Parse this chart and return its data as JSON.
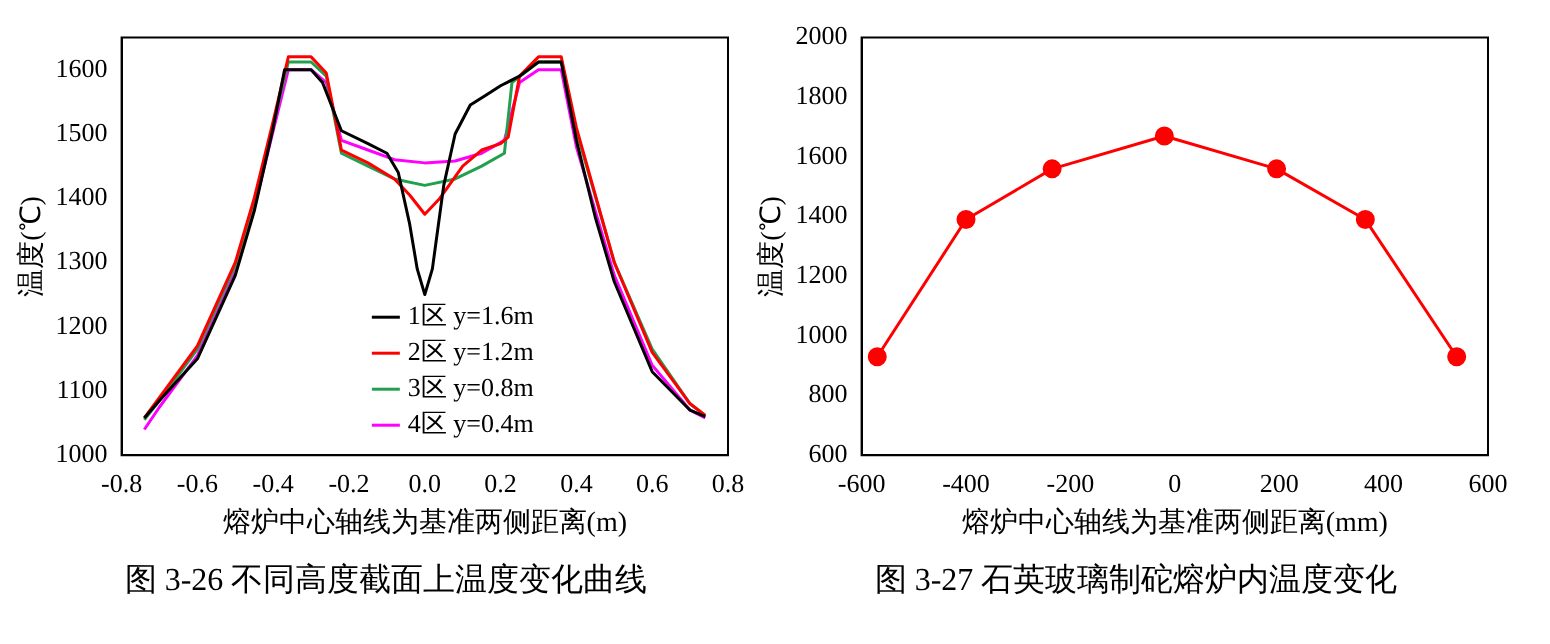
{
  "chart_data": [
    {
      "type": "line",
      "xlabel": "熔炉中心轴线为基准两侧距离(m)",
      "ylabel": "温度(℃)",
      "annotations": [
        "图 3-26  不同高度截面上温度变化曲线"
      ],
      "xlim": [
        -0.8,
        0.8
      ],
      "xticks": [
        -0.8,
        -0.6,
        -0.4,
        -0.2,
        {
          "value": 0,
          "label": "0.0"
        },
        0.2,
        0.4,
        0.6,
        0.8
      ],
      "ylim": [
        1000,
        1650
      ],
      "yticks": [
        1000,
        1100,
        1200,
        1300,
        1400,
        1500,
        1600
      ],
      "grid": false,
      "legend": "bottom",
      "marker": "none",
      "line_style": "solid",
      "series": [
        {
          "name": "1区 y=1.6m",
          "color": "#000000",
          "x": [
            -0.74,
            -0.7,
            -0.6,
            -0.5,
            -0.45,
            -0.4,
            -0.37,
            -0.3,
            -0.27,
            -0.22,
            -0.15,
            -0.1,
            -0.07,
            -0.04,
            -0.02,
            0,
            0.02,
            0.05,
            0.08,
            0.12,
            0.16,
            0.2,
            0.25,
            0.3,
            0.36,
            0.4,
            0.45,
            0.5,
            0.6,
            0.7,
            0.74
          ],
          "values": [
            1058,
            1085,
            1150,
            1280,
            1380,
            1510,
            1600,
            1600,
            1580,
            1505,
            1485,
            1470,
            1440,
            1360,
            1290,
            1250,
            1290,
            1420,
            1500,
            1545,
            1560,
            1575,
            1590,
            1612,
            1612,
            1490,
            1370,
            1270,
            1130,
            1070,
            1060
          ]
        },
        {
          "name": "2区 y=1.2m",
          "color": "#ff0000",
          "x": [
            -0.74,
            -0.7,
            -0.6,
            -0.5,
            -0.45,
            -0.4,
            -0.36,
            -0.3,
            -0.26,
            -0.22,
            -0.15,
            -0.08,
            -0.04,
            0,
            0.04,
            0.1,
            0.15,
            0.2,
            0.22,
            0.25,
            0.3,
            0.36,
            0.4,
            0.5,
            0.6,
            0.7,
            0.74
          ],
          "values": [
            1058,
            1090,
            1170,
            1300,
            1400,
            1520,
            1620,
            1620,
            1595,
            1475,
            1455,
            1430,
            1405,
            1375,
            1400,
            1450,
            1475,
            1485,
            1495,
            1590,
            1620,
            1620,
            1510,
            1300,
            1160,
            1080,
            1062
          ]
        },
        {
          "name": "3区 y=0.8m",
          "color": "#22a050",
          "x": [
            -0.74,
            -0.7,
            -0.6,
            -0.5,
            -0.45,
            -0.4,
            -0.36,
            -0.3,
            -0.26,
            -0.22,
            -0.15,
            -0.08,
            0,
            0.08,
            0.15,
            0.21,
            0.23,
            0.3,
            0.36,
            0.4,
            0.5,
            0.6,
            0.7,
            0.74
          ],
          "values": [
            1055,
            1085,
            1165,
            1295,
            1395,
            1515,
            1612,
            1612,
            1590,
            1470,
            1450,
            1430,
            1420,
            1430,
            1450,
            1470,
            1580,
            1612,
            1612,
            1505,
            1300,
            1165,
            1080,
            1062
          ]
        },
        {
          "name": "4区 y=0.4m",
          "color": "#ff00ff",
          "x": [
            -0.74,
            -0.7,
            -0.6,
            -0.5,
            -0.45,
            -0.4,
            -0.36,
            -0.3,
            -0.26,
            -0.22,
            -0.15,
            -0.08,
            0,
            0.08,
            0.15,
            0.21,
            0.25,
            0.3,
            0.36,
            0.4,
            0.5,
            0.6,
            0.7,
            0.74
          ],
          "values": [
            1040,
            1075,
            1155,
            1285,
            1385,
            1505,
            1600,
            1600,
            1580,
            1490,
            1475,
            1460,
            1455,
            1458,
            1470,
            1490,
            1580,
            1600,
            1600,
            1480,
            1280,
            1140,
            1070,
            1058
          ]
        }
      ]
    },
    {
      "type": "line",
      "xlabel": "熔炉中心轴线为基准两侧距离(mm)",
      "ylabel": "温度(℃)",
      "annotations": [
        "图 3-27  石英玻璃制砣熔炉内温度变化"
      ],
      "xlim": [
        -600,
        600
      ],
      "xticks": [
        -600,
        -400,
        -200,
        0,
        200,
        400,
        600
      ],
      "ylim": [
        600,
        2000
      ],
      "yticks": [
        600,
        800,
        1000,
        1200,
        1400,
        1600,
        1800,
        2000
      ],
      "grid": false,
      "marker": "circle",
      "line_style": "solid",
      "x": [
        -570,
        -400,
        -235,
        -20,
        195,
        365,
        540
      ],
      "series": [
        {
          "color": "#ff0000",
          "values": [
            930,
            1390,
            1560,
            1670,
            1560,
            1390,
            930
          ]
        }
      ]
    }
  ]
}
